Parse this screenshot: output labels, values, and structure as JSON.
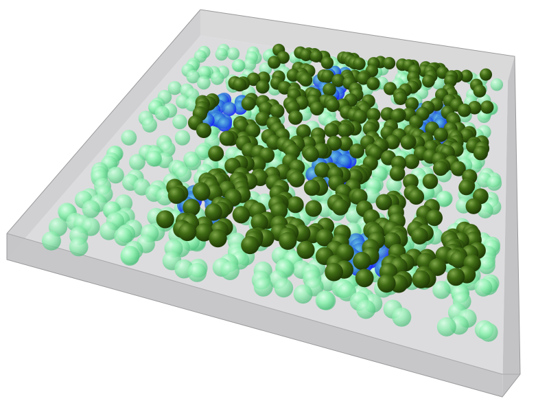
{
  "scene": {
    "description_free": true,
    "colors": {
      "background": "#ffffff",
      "box_fill": "#c9c9cb",
      "box_top_rim": "#d8d8da",
      "box_edge": "#9a9a9c",
      "floor": "#dcdcde",
      "dark_sphere": "#3f6b14",
      "light_sphere": "#8ff0b0",
      "core_sphere": "#1a1aff",
      "core_glow": "#4aa8c8"
    },
    "icons": [
      "box-container",
      "dark-green-spheres",
      "light-green-spheres",
      "blue-core-spheres"
    ]
  }
}
